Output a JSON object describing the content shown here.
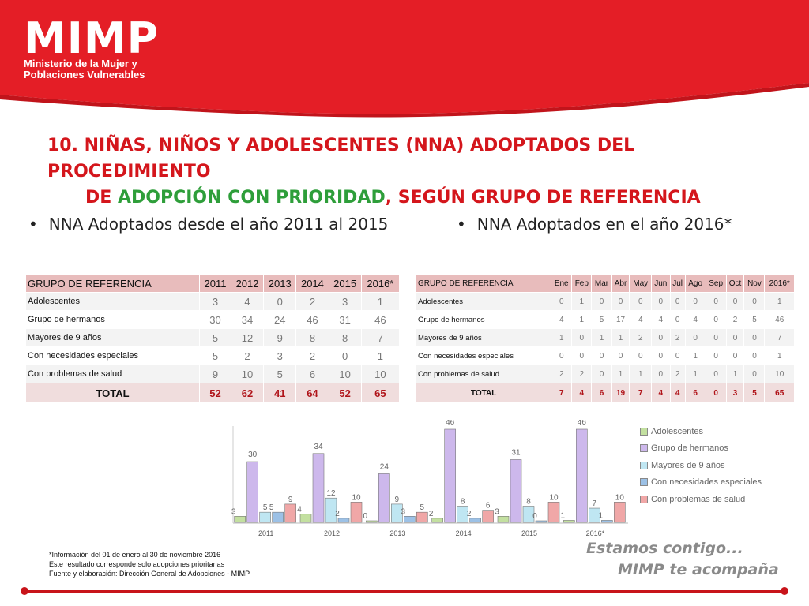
{
  "logo": {
    "title": "MIMP",
    "subtitle_line1": "Ministerio de la Mujer y",
    "subtitle_line2": "Poblaciones Vulnerables"
  },
  "title": {
    "line1": "10. NIÑAS, NIÑOS Y ADOLESCENTES (NNA) ADOPTADOS DEL PROCEDIMIENTO",
    "line2_prefix": "DE ",
    "line2_green": "ADOPCIÓN CON PRIORIDAD",
    "line2_suffix": ", SEGÚN GRUPO DE REFERENCIA"
  },
  "bullets": {
    "left": "NNA Adoptados desde el año 2011 al 2015",
    "right": "NNA Adoptados en el año 2016*"
  },
  "table_years": {
    "headers": [
      "GRUPO DE REFERENCIA",
      "2011",
      "2012",
      "2013",
      "2014",
      "2015",
      "2016*"
    ],
    "rows": [
      [
        "Adolescentes",
        "3",
        "4",
        "0",
        "2",
        "3",
        "1"
      ],
      [
        "Grupo de hermanos",
        "30",
        "34",
        "24",
        "46",
        "31",
        "46"
      ],
      [
        "Mayores de 9 años",
        "5",
        "12",
        "9",
        "8",
        "8",
        "7"
      ],
      [
        "Con necesidades especiales",
        "5",
        "2",
        "3",
        "2",
        "0",
        "1"
      ],
      [
        "Con problemas de salud",
        "9",
        "10",
        "5",
        "6",
        "10",
        "10"
      ]
    ],
    "total": [
      "TOTAL",
      "52",
      "62",
      "41",
      "64",
      "52",
      "65"
    ]
  },
  "table_months": {
    "headers": [
      "GRUPO DE REFERENCIA",
      "Ene",
      "Feb",
      "Mar",
      "Abr",
      "May",
      "Jun",
      "Jul",
      "Ago",
      "Sep",
      "Oct",
      "Nov",
      "2016*"
    ],
    "rows": [
      [
        "Adolescentes",
        "0",
        "1",
        "0",
        "0",
        "0",
        "0",
        "0",
        "0",
        "0",
        "0",
        "0",
        "1"
      ],
      [
        "Grupo de hermanos",
        "4",
        "1",
        "5",
        "17",
        "4",
        "4",
        "0",
        "4",
        "0",
        "2",
        "5",
        "46"
      ],
      [
        "Mayores de 9 años",
        "1",
        "0",
        "1",
        "1",
        "2",
        "0",
        "2",
        "0",
        "0",
        "0",
        "0",
        "7"
      ],
      [
        "Con necesidades especiales",
        "0",
        "0",
        "0",
        "0",
        "0",
        "0",
        "0",
        "1",
        "0",
        "0",
        "0",
        "1"
      ],
      [
        "Con problemas de salud",
        "2",
        "2",
        "0",
        "1",
        "1",
        "0",
        "2",
        "1",
        "0",
        "1",
        "0",
        "10"
      ]
    ],
    "total": [
      "TOTAL",
      "7",
      "4",
      "6",
      "19",
      "7",
      "4",
      "4",
      "6",
      "0",
      "3",
      "5",
      "65"
    ]
  },
  "chart_data": {
    "type": "bar",
    "categories": [
      "2011",
      "2012",
      "2013",
      "2014",
      "2015",
      "2016*"
    ],
    "series": [
      {
        "name": "Adolescentes",
        "values": [
          3,
          4,
          0,
          2,
          3,
          1
        ]
      },
      {
        "name": "Grupo de hermanos",
        "values": [
          30,
          34,
          24,
          46,
          31,
          46
        ]
      },
      {
        "name": "Mayores de 9 años",
        "values": [
          5,
          12,
          9,
          8,
          8,
          7
        ]
      },
      {
        "name": "Con necesidades especiales",
        "values": [
          5,
          2,
          3,
          2,
          0,
          1
        ]
      },
      {
        "name": "Con problemas de salud",
        "values": [
          9,
          10,
          5,
          6,
          10,
          10
        ]
      }
    ],
    "colors": [
      "#c3e0a0",
      "#cdb8ec",
      "#bfe6f2",
      "#9cc1e6",
      "#f0a7a7"
    ],
    "ylim": [
      0,
      46
    ],
    "legend": "right",
    "grid": false
  },
  "notes": [
    "*Información del 01 de enero al 30 de noviembre 2016",
    "Este resultado corresponde solo adopciones prioritarias",
    "Fuente y elaboración: Dirección General de Adopciones - MIMP"
  ],
  "slogan": {
    "line1": "Estamos contigo...",
    "line2": "MIMP te acompaña"
  },
  "brand_colors": {
    "red": "#d4161c",
    "green": "#2e9e3a"
  }
}
